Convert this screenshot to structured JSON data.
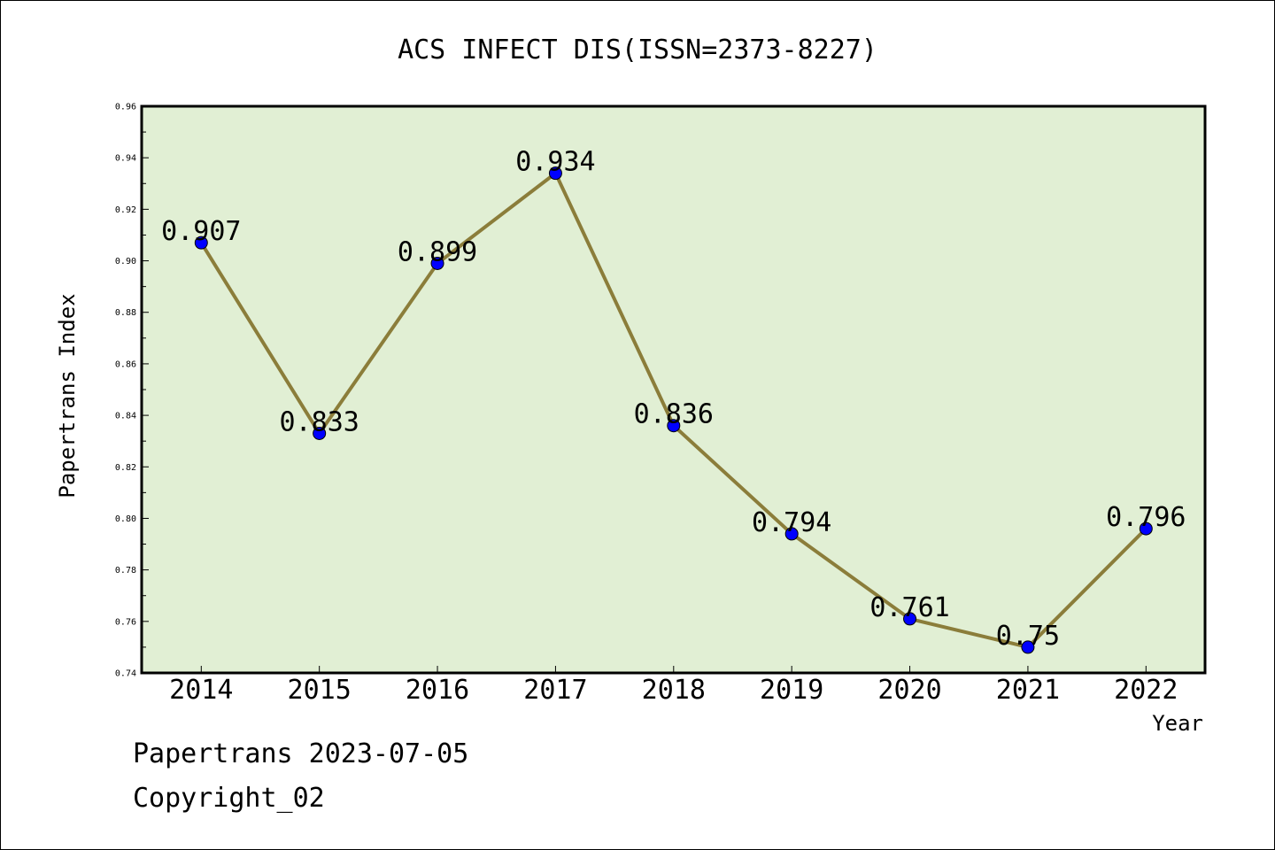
{
  "chart_data": {
    "type": "line",
    "title": "ACS INFECT DIS(ISSN=2373-8227)",
    "xlabel": "Year",
    "ylabel": "Papertrans Index",
    "categories": [
      "2014",
      "2015",
      "2016",
      "2017",
      "2018",
      "2019",
      "2020",
      "2021",
      "2022"
    ],
    "series": [
      {
        "values": [
          0.907,
          0.833,
          0.899,
          0.934,
          0.836,
          0.794,
          0.761,
          0.75,
          0.796
        ],
        "labels": [
          "0.907",
          "0.833",
          "0.899",
          "0.934",
          "0.836",
          "0.794",
          "0.761",
          "0.75",
          "0.796"
        ]
      }
    ],
    "ylim": [
      0.74,
      0.96
    ],
    "yticks": [
      "0.74",
      "0.76",
      "0.78",
      "0.80",
      "0.82",
      "0.84",
      "0.86",
      "0.88",
      "0.90",
      "0.92",
      "0.94",
      "0.96"
    ],
    "grid": false,
    "colors": {
      "plot_background": "#e1efd4",
      "line": "#8b7d3a",
      "marker": "#0000ff"
    }
  },
  "footer": {
    "line1": "Papertrans 2023-07-05",
    "line2": "Copyright_02"
  }
}
